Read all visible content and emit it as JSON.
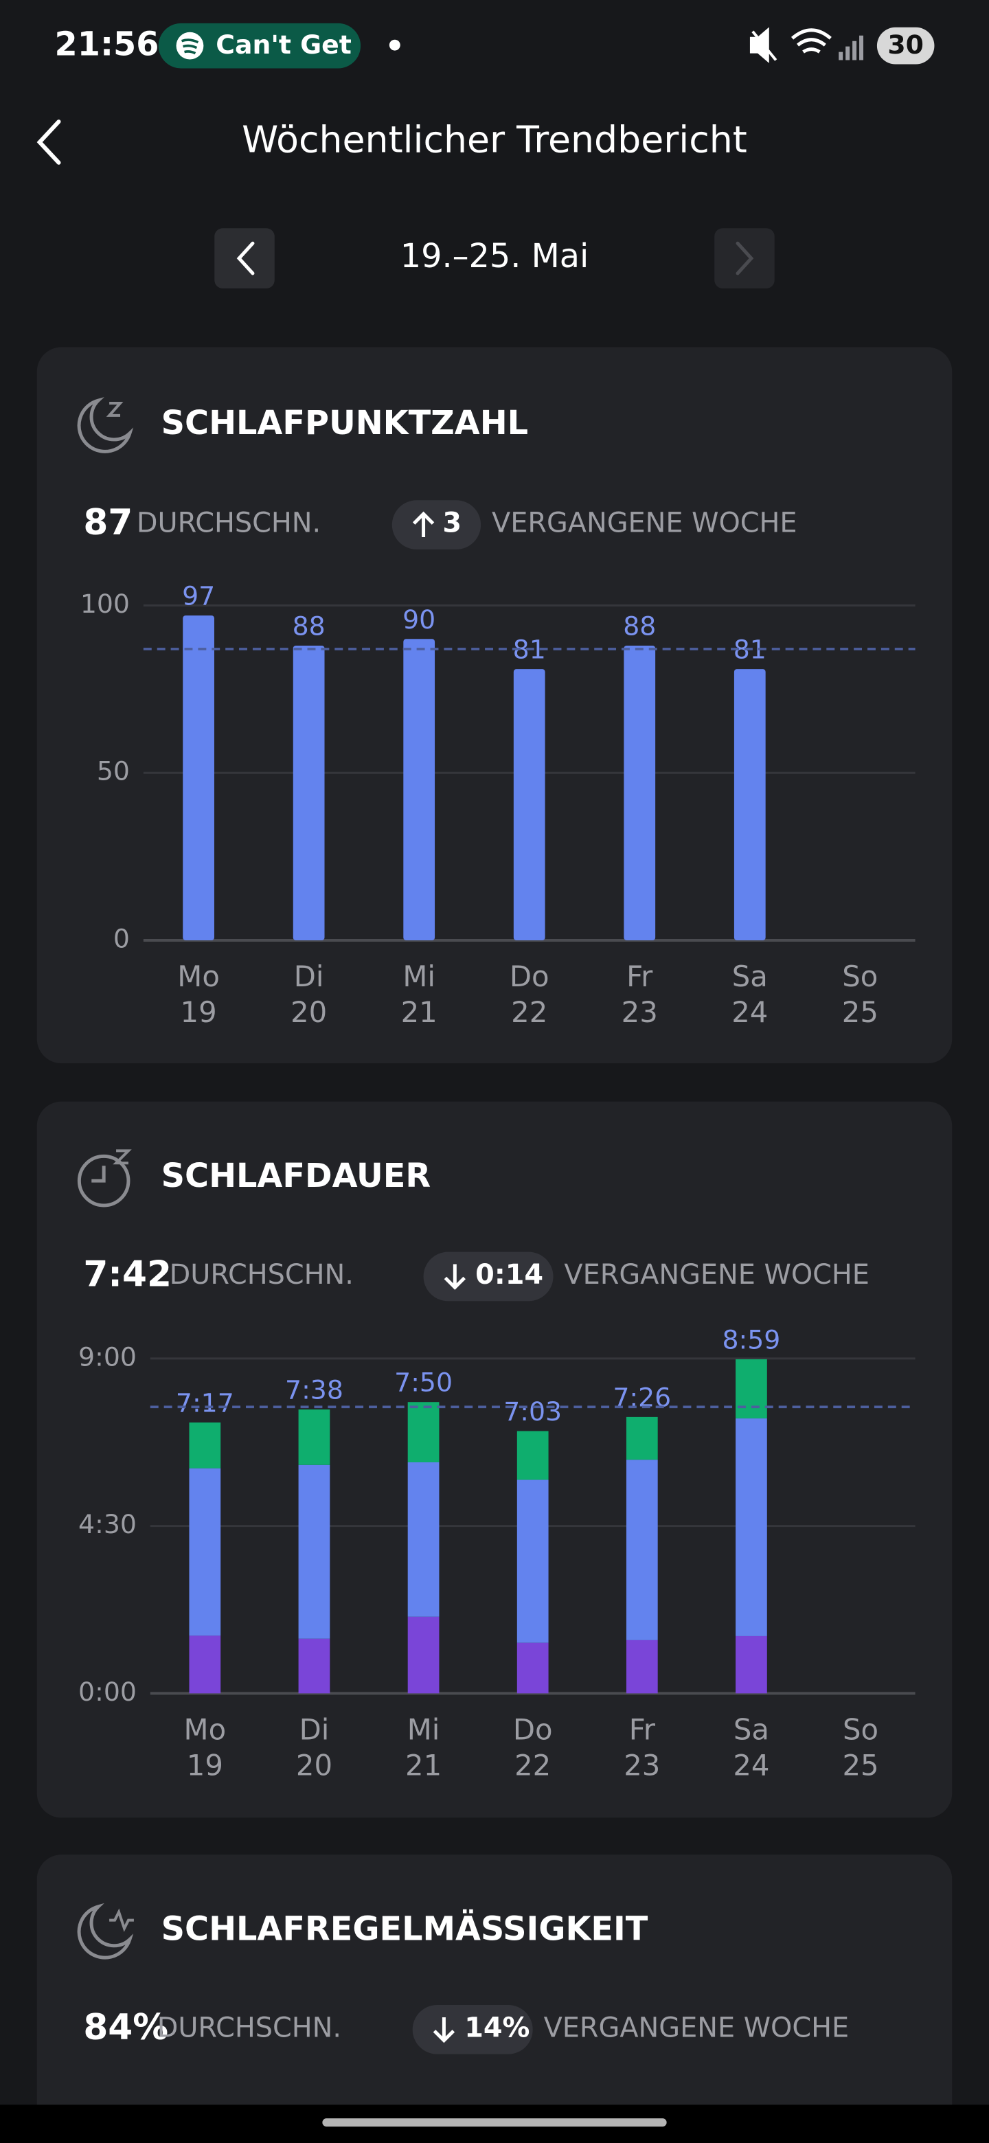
{
  "status_bar": {
    "time": "21:56",
    "media": "Can't Get",
    "battery": "30"
  },
  "header": {
    "title": "Wöchentlicher Trendbericht"
  },
  "week": {
    "label": "19.–25. Mai"
  },
  "chart_data": [
    {
      "type": "bar",
      "title": "SCHLAFPUNKTZAHL",
      "average": 87,
      "average_caption": "DURCHSCHN.",
      "change": 3,
      "change_caption": "VERGANGENE WOCHE",
      "categories": [
        "Mo",
        "Di",
        "Mi",
        "Do",
        "Fr",
        "Sa",
        "So"
      ],
      "days": [
        "19",
        "20",
        "21",
        "22",
        "23",
        "24",
        "25"
      ],
      "values": [
        97,
        88,
        90,
        81,
        88,
        81,
        null
      ],
      "color": "#6383ee",
      "ylim": [
        0,
        100
      ],
      "yticks": [
        0,
        50,
        100
      ],
      "grid": true
    },
    {
      "type": "stacked_bar",
      "title": "SCHLAFDAUER",
      "average": 7.7,
      "average_label": "7:42",
      "average_caption": "DURCHSCHN.",
      "change": -0.233,
      "change_label": "0:14",
      "change_caption": "VERGANGENE WOCHE",
      "categories": [
        "Mo",
        "Di",
        "Mi",
        "Do",
        "Fr",
        "Sa",
        "So"
      ],
      "days": [
        "19",
        "20",
        "21",
        "22",
        "23",
        "24",
        "25"
      ],
      "series": [
        {
          "color": "#7a45d8",
          "values": [
            1.55,
            1.47,
            2.06,
            1.36,
            1.43,
            1.54,
            null
          ]
        },
        {
          "color": "#6383ee",
          "values": [
            4.5,
            4.67,
            4.15,
            4.38,
            4.85,
            5.85,
            null
          ]
        },
        {
          "color": "#0fae6e",
          "values": [
            1.23,
            1.49,
            1.62,
            1.31,
            1.15,
            1.59,
            null
          ]
        }
      ],
      "totals": [
        7.283,
        7.633,
        7.833,
        7.05,
        7.433,
        8.983,
        null
      ],
      "value_labels": [
        "7:17",
        "7:38",
        "7:50",
        "7:03",
        "7:26",
        "8:59",
        null
      ],
      "ylim": [
        0,
        9
      ],
      "yticks": [
        {
          "value": 0,
          "label": "0:00"
        },
        {
          "value": 4.5,
          "label": "4:30"
        },
        {
          "value": 9,
          "label": "9:00"
        }
      ],
      "grid": true
    }
  ],
  "regularity": {
    "title": "SCHLAFREGELMÄSSIGKEIT",
    "average": "84%",
    "average_caption": "DURCHSCHN.",
    "change": "14%",
    "change_caption": "VERGANGENE WOCHE"
  }
}
